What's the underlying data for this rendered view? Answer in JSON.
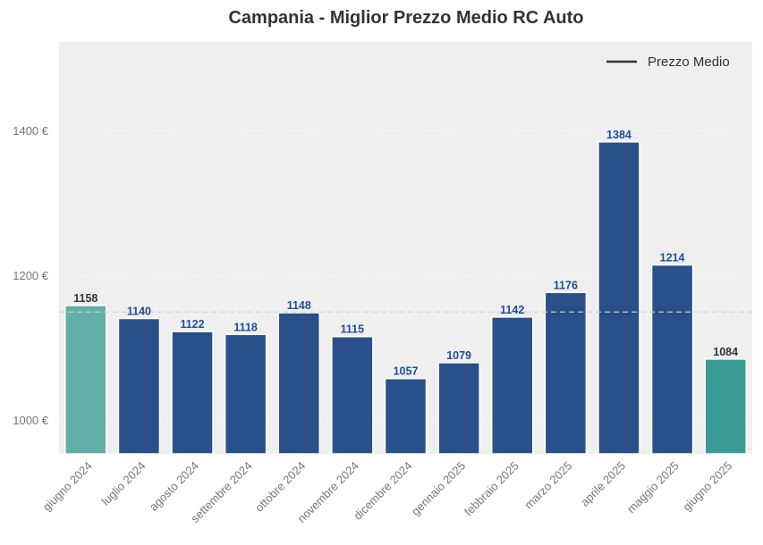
{
  "chart_data": {
    "type": "bar",
    "title": "Campania - Miglior Prezzo Medio RC Auto",
    "xlabel": "",
    "ylabel": "",
    "categories": [
      "giugno 2024",
      "luglio 2024",
      "agosto 2024",
      "settembre 2024",
      "ottobre 2024",
      "novembre 2024",
      "dicembre 2024",
      "gennaio 2025",
      "febbraio 2025",
      "marzo 2025",
      "aprile 2025",
      "maggio 2025",
      "giugno 2025"
    ],
    "values": [
      1158,
      1140,
      1122,
      1118,
      1148,
      1115,
      1057,
      1079,
      1142,
      1176,
      1384,
      1214,
      1084
    ],
    "ylim": [
      953,
      1522
    ],
    "yticks": [
      1000,
      1200,
      1400
    ],
    "ytick_labels": [
      "1000 €",
      "1200 €",
      "1400 €"
    ],
    "mean_line": 1149,
    "legend": {
      "label": "Prezzo Medio",
      "placement": "top-right"
    },
    "grid": true,
    "colors": {
      "bar": "#2a5089",
      "first_bar": "#62aea8",
      "last_bar": "#3a9b94",
      "label_blue": "#1f4e99",
      "label_dark": "#333333",
      "plot_bg": "#efefef"
    }
  }
}
